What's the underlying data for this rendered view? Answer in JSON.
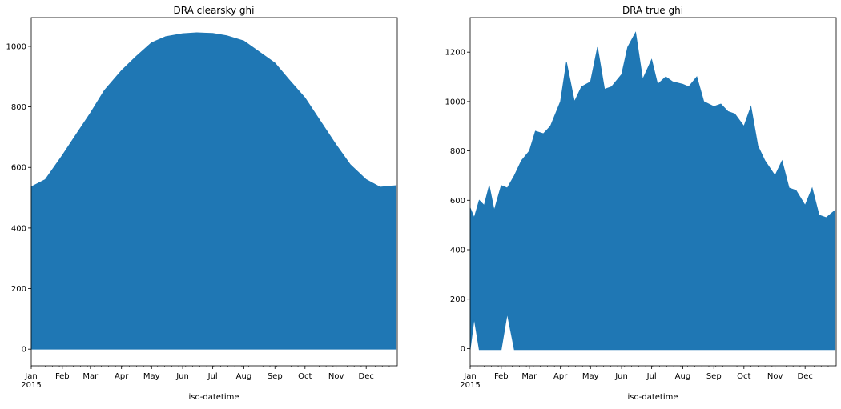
{
  "figure": {
    "background": "#ffffff"
  },
  "chart_data": [
    {
      "type": "area",
      "title": "DRA clearsky ghi",
      "xlabel": "iso-datetime",
      "ylabel": "",
      "color": "#1f77b4",
      "year_label": "2015",
      "x_ticks": [
        "Jan",
        "Feb",
        "Mar",
        "Apr",
        "May",
        "Jun",
        "Jul",
        "Aug",
        "Sep",
        "Oct",
        "Nov",
        "Dec"
      ],
      "y_ticks": [
        0,
        200,
        400,
        600,
        800,
        1000
      ],
      "ylim": [
        -55,
        1095
      ],
      "xlim": [
        "2015-01-01",
        "2015-12-31"
      ],
      "grid": false,
      "series": [
        {
          "x": [
            "2015-01-01",
            "2015-01-15",
            "2015-02-01",
            "2015-02-15",
            "2015-03-01",
            "2015-03-15",
            "2015-04-01",
            "2015-04-15",
            "2015-05-01",
            "2015-05-15",
            "2015-06-01",
            "2015-06-15",
            "2015-07-01",
            "2015-07-15",
            "2015-08-01",
            "2015-08-15",
            "2015-09-01",
            "2015-09-15",
            "2015-10-01",
            "2015-10-15",
            "2015-11-01",
            "2015-11-15",
            "2015-12-01",
            "2015-12-15",
            "2015-12-31"
          ],
          "y": [
            536,
            560,
            640,
            710,
            780,
            855,
            920,
            965,
            1012,
            1032,
            1042,
            1045,
            1043,
            1035,
            1018,
            985,
            945,
            890,
            830,
            760,
            675,
            610,
            560,
            535,
            540
          ],
          "min": [
            0,
            0,
            0,
            0,
            0,
            0,
            0,
            0,
            0,
            0,
            0,
            0,
            0,
            0,
            0,
            0,
            0,
            0,
            0,
            0,
            0,
            0,
            0,
            0,
            0
          ]
        }
      ]
    },
    {
      "type": "area",
      "title": "DRA true ghi",
      "xlabel": "iso-datetime",
      "ylabel": "",
      "color": "#1f77b4",
      "year_label": "2015",
      "x_ticks": [
        "Jan",
        "Feb",
        "Mar",
        "Apr",
        "May",
        "Jun",
        "Jul",
        "Aug",
        "Sep",
        "Oct",
        "Nov",
        "Dec"
      ],
      "y_ticks": [
        0,
        200,
        400,
        600,
        800,
        1000,
        1200
      ],
      "ylim": [
        -70,
        1340
      ],
      "xlim": [
        "2015-01-01",
        "2015-12-31"
      ],
      "grid": false,
      "series": [
        {
          "x": [
            "2015-01-01",
            "2015-01-05",
            "2015-01-10",
            "2015-01-15",
            "2015-01-20",
            "2015-01-25",
            "2015-02-01",
            "2015-02-07",
            "2015-02-14",
            "2015-02-21",
            "2015-03-01",
            "2015-03-07",
            "2015-03-15",
            "2015-03-22",
            "2015-04-01",
            "2015-04-07",
            "2015-04-15",
            "2015-04-22",
            "2015-05-01",
            "2015-05-08",
            "2015-05-15",
            "2015-05-22",
            "2015-06-01",
            "2015-06-07",
            "2015-06-15",
            "2015-06-22",
            "2015-07-01",
            "2015-07-07",
            "2015-07-15",
            "2015-07-22",
            "2015-08-01",
            "2015-08-07",
            "2015-08-15",
            "2015-08-22",
            "2015-09-01",
            "2015-09-08",
            "2015-09-15",
            "2015-09-22",
            "2015-10-01",
            "2015-10-08",
            "2015-10-15",
            "2015-10-22",
            "2015-11-01",
            "2015-11-08",
            "2015-11-15",
            "2015-11-22",
            "2015-12-01",
            "2015-12-08",
            "2015-12-15",
            "2015-12-22",
            "2015-12-31"
          ],
          "y": [
            570,
            530,
            600,
            580,
            660,
            560,
            660,
            650,
            700,
            760,
            800,
            880,
            870,
            900,
            1000,
            1160,
            1000,
            1060,
            1080,
            1220,
            1050,
            1060,
            1110,
            1220,
            1280,
            1090,
            1170,
            1070,
            1100,
            1080,
            1070,
            1060,
            1100,
            1000,
            980,
            990,
            960,
            950,
            900,
            980,
            820,
            760,
            700,
            760,
            650,
            640,
            580,
            650,
            540,
            530,
            560
          ],
          "min": [
            -5,
            120,
            -5,
            -5,
            -5,
            -5,
            -5,
            140,
            -5,
            -5,
            -5,
            -5,
            -5,
            -5,
            -5,
            -5,
            -5,
            -5,
            -5,
            -5,
            -5,
            -5,
            -5,
            -5,
            -5,
            -5,
            -5,
            -5,
            -5,
            -5,
            -5,
            -5,
            -5,
            -5,
            -5,
            -5,
            -5,
            -5,
            -5,
            -5,
            -5,
            -5,
            -5,
            -5,
            -5,
            -5,
            -5,
            -5,
            -5,
            -5,
            -5
          ]
        }
      ]
    }
  ]
}
